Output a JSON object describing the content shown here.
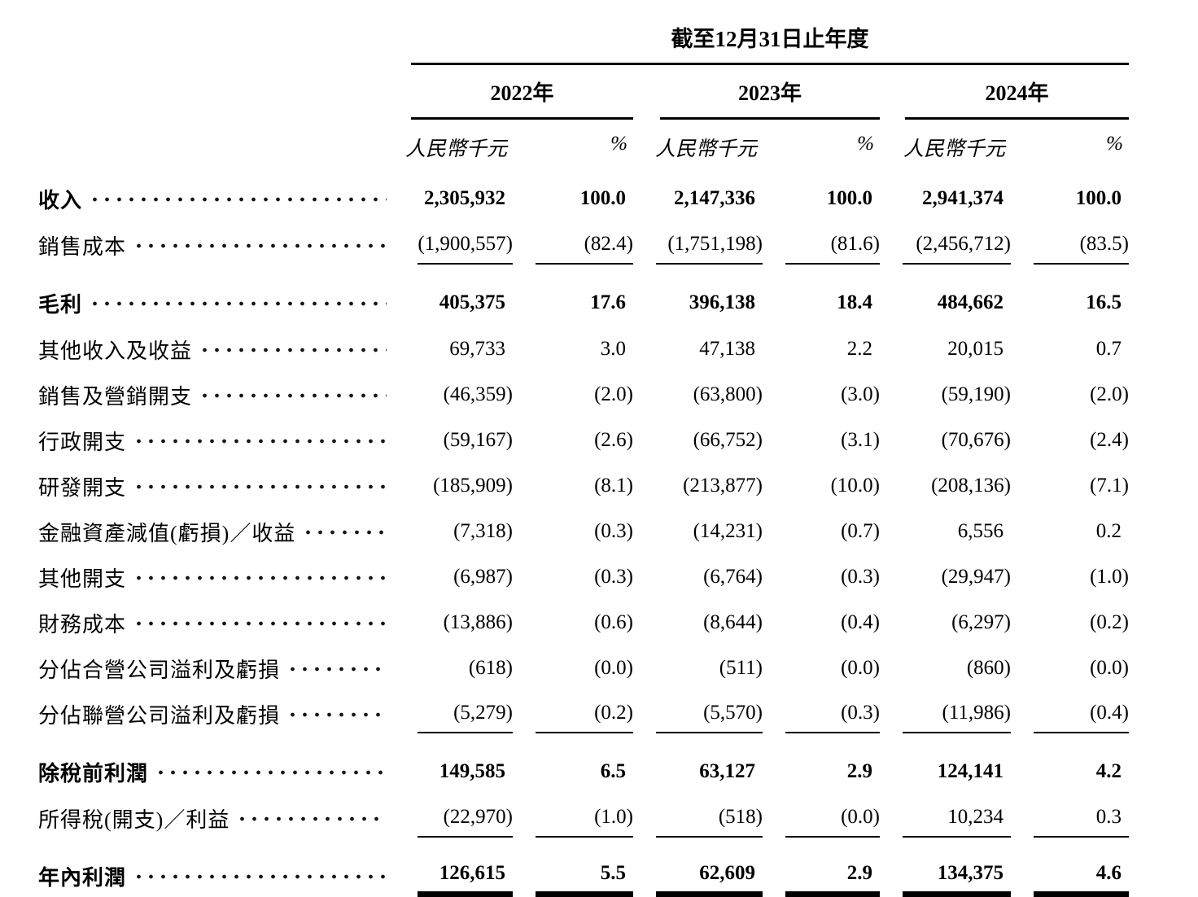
{
  "table": {
    "title": "截至12月31日止年度",
    "year_headers": [
      "2022年",
      "2023年",
      "2024年"
    ],
    "unit_label": "人民幣千元",
    "pct_label": "%",
    "rows": [
      {
        "label": "收入",
        "bold": true,
        "rule": "none",
        "values": [
          "2,305,932",
          "100.0",
          "2,147,336",
          "100.0",
          "2,941,374",
          "100.0"
        ]
      },
      {
        "label": "銷售成本",
        "bold": false,
        "rule": "single",
        "values": [
          "(1,900,557)",
          "(82.4)",
          "(1,751,198)",
          "(81.6)",
          "(2,456,712)",
          "(83.5)"
        ]
      },
      {
        "label": "毛利",
        "bold": true,
        "rule": "none",
        "values": [
          "405,375",
          "17.6",
          "396,138",
          "18.4",
          "484,662",
          "16.5"
        ]
      },
      {
        "label": "其他收入及收益",
        "bold": false,
        "rule": "none",
        "values": [
          "69,733",
          "3.0",
          "47,138",
          "2.2",
          "20,015",
          "0.7"
        ]
      },
      {
        "label": "銷售及營銷開支",
        "bold": false,
        "rule": "none",
        "values": [
          "(46,359)",
          "(2.0)",
          "(63,800)",
          "(3.0)",
          "(59,190)",
          "(2.0)"
        ]
      },
      {
        "label": "行政開支",
        "bold": false,
        "rule": "none",
        "values": [
          "(59,167)",
          "(2.6)",
          "(66,752)",
          "(3.1)",
          "(70,676)",
          "(2.4)"
        ]
      },
      {
        "label": "研發開支",
        "bold": false,
        "rule": "none",
        "values": [
          "(185,909)",
          "(8.1)",
          "(213,877)",
          "(10.0)",
          "(208,136)",
          "(7.1)"
        ]
      },
      {
        "label": "金融資產減值(虧損)／收益",
        "bold": false,
        "rule": "none",
        "values": [
          "(7,318)",
          "(0.3)",
          "(14,231)",
          "(0.7)",
          "6,556",
          "0.2"
        ]
      },
      {
        "label": "其他開支",
        "bold": false,
        "rule": "none",
        "values": [
          "(6,987)",
          "(0.3)",
          "(6,764)",
          "(0.3)",
          "(29,947)",
          "(1.0)"
        ]
      },
      {
        "label": "財務成本",
        "bold": false,
        "rule": "none",
        "values": [
          "(13,886)",
          "(0.6)",
          "(8,644)",
          "(0.4)",
          "(6,297)",
          "(0.2)"
        ]
      },
      {
        "label": "分佔合營公司溢利及虧損",
        "bold": false,
        "rule": "none",
        "values": [
          "(618)",
          "(0.0)",
          "(511)",
          "(0.0)",
          "(860)",
          "(0.0)"
        ]
      },
      {
        "label": "分佔聯營公司溢利及虧損",
        "bold": false,
        "rule": "single",
        "values": [
          "(5,279)",
          "(0.2)",
          "(5,570)",
          "(0.3)",
          "(11,986)",
          "(0.4)"
        ]
      },
      {
        "label": "除稅前利潤",
        "bold": true,
        "rule": "none",
        "values": [
          "149,585",
          "6.5",
          "63,127",
          "2.9",
          "124,141",
          "4.2"
        ]
      },
      {
        "label": "所得稅(開支)／利益",
        "bold": false,
        "rule": "single",
        "values": [
          "(22,970)",
          "(1.0)",
          "(518)",
          "(0.0)",
          "10,234",
          "0.3"
        ]
      },
      {
        "label": "年內利潤",
        "bold": true,
        "rule": "double",
        "values": [
          "126,615",
          "5.5",
          "62,609",
          "2.9",
          "134,375",
          "4.6"
        ]
      }
    ]
  }
}
